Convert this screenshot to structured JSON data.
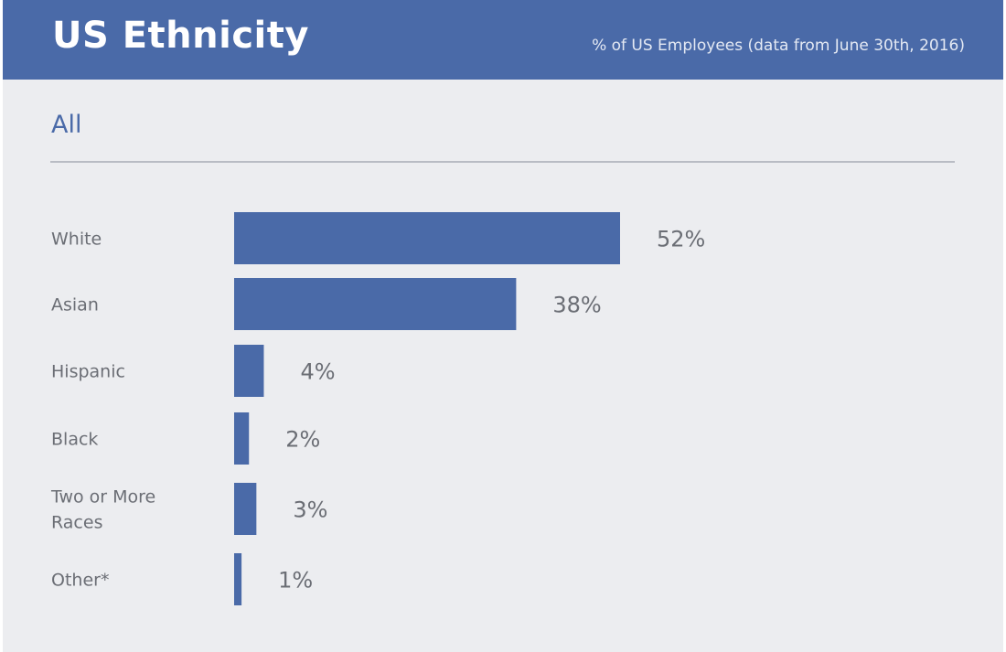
{
  "header": {
    "title": "US Ethnicity",
    "subtitle": "% of US Employees (data from June 30th, 2016)"
  },
  "section_title": "All",
  "colors": {
    "header_bg": "#4a6aa8",
    "bar": "#4a6aa8",
    "background": "#ecedf0",
    "text": "#6b6e75"
  },
  "chart_data": {
    "type": "bar",
    "orientation": "horizontal",
    "categories": [
      [
        "White"
      ],
      [
        "Asian"
      ],
      [
        "Hispanic"
      ],
      [
        "Black"
      ],
      [
        "Two or More",
        "Races"
      ],
      [
        "Other*"
      ]
    ],
    "values": [
      52,
      38,
      4,
      2,
      3,
      1
    ],
    "value_labels": [
      "52%",
      "38%",
      "4%",
      "2%",
      "3%",
      "1%"
    ],
    "unit": "%",
    "xlim": [
      0,
      52
    ],
    "grid": false,
    "legend": "none"
  }
}
